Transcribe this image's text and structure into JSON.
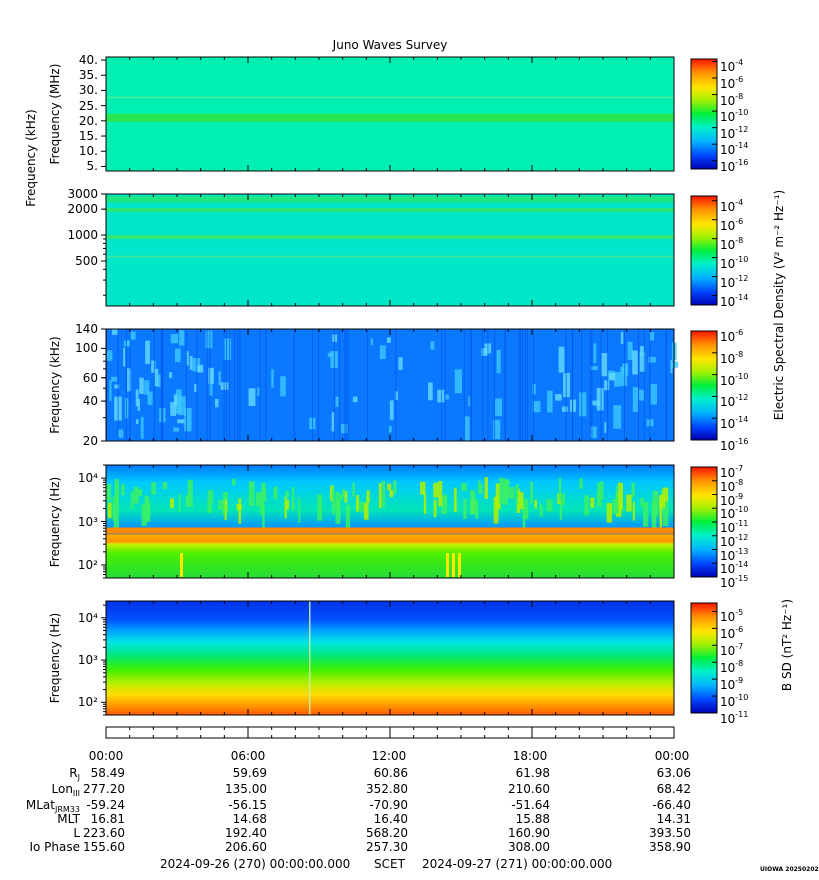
{
  "chart_data": {
    "title": "Juno Waves Survey",
    "type": "heatmap",
    "time_axis": {
      "tick_labels": [
        "00:00",
        "06:00",
        "12:00",
        "18:00",
        "00:00"
      ],
      "minor_ticks_per_major": 6
    },
    "panels": [
      {
        "id": "hfr-high",
        "ylabel": "Frequency (MHz)",
        "scale": "linear",
        "ylim": [
          3.5,
          41
        ],
        "ticks": [
          5,
          10,
          15,
          20,
          25,
          30,
          35,
          40
        ],
        "tick_labels": [
          "5.",
          "10.",
          "15.",
          "20.",
          "25.",
          "30.",
          "35.",
          "40."
        ],
        "colorbar_exponents": [
          -4,
          -6,
          -8,
          -10,
          -12,
          -14,
          -16
        ],
        "colorbar_range": [
          -17,
          -3.7
        ],
        "content": "uniform cyan-green background (~1e-12) with bright band near 21 MHz"
      },
      {
        "id": "hfr-low",
        "ylabel": "Frequency (kHz)",
        "scale": "log",
        "ylim": [
          150,
          3000
        ],
        "ticks": [
          500,
          1000,
          2000,
          3000
        ],
        "tick_labels": [
          "500",
          "1000",
          "2000",
          "3000"
        ],
        "colorbar_exponents": [
          -4,
          -6,
          -8,
          -10,
          -12,
          -14
        ],
        "colorbar_range": [
          -15,
          -3.5
        ],
        "content": "uniform cyan background with faint bands near 2600, 1900, 950 and 550 kHz"
      },
      {
        "id": "lfr-high",
        "ylabel": "Frequency (kHz)",
        "scale": "log",
        "ylim": [
          20,
          140
        ],
        "ticks": [
          20,
          40,
          60,
          100,
          140
        ],
        "tick_labels": [
          "20",
          "40",
          "60",
          "100",
          "140"
        ],
        "colorbar_exponents": [
          -6,
          -8,
          -10,
          -12,
          -14,
          -16
        ],
        "colorbar_range": [
          -16,
          -6
        ],
        "content": "blue background (~1e-14) with patchy light-blue emissions, strongest 00:00-03:00"
      },
      {
        "id": "lfr-low",
        "ylabel": "Frequency (Hz)",
        "scale": "log",
        "ylim": [
          50,
          20000
        ],
        "ticks": [
          100,
          1000,
          10000
        ],
        "tick_labels": [
          "10²",
          "10³",
          "10⁴"
        ],
        "colorbar_exponents": [
          -7,
          -8,
          -9,
          -10,
          -11,
          -12,
          -13,
          -14,
          -15
        ],
        "colorbar_range": [
          -15,
          -7
        ],
        "content": "green band below ~700 Hz with orange line near 600 Hz; blue-green emission 2-20 kHz"
      },
      {
        "id": "magnetic",
        "ylabel": "Frequency (Hz)",
        "scale": "log",
        "ylim": [
          50,
          25000
        ],
        "ticks": [
          100,
          1000,
          10000
        ],
        "tick_labels": [
          "10²",
          "10³",
          "10⁴"
        ],
        "colorbar_exponents": [
          -5,
          -6,
          -7,
          -8,
          -9,
          -10,
          -11
        ],
        "colorbar_range": [
          -11,
          -4.5
        ],
        "content": "smooth spectrum: red/orange at 50 Hz, yellow ~200 Hz, green ~1 kHz, blue above 5 kHz"
      }
    ],
    "colorbar_titles": {
      "electric": "Electric Spectral Density (V² m⁻² Hz⁻¹)",
      "magnetic": "B SD (nT² Hz⁻¹)"
    },
    "colormap": [
      "#0000c8",
      "#0050ff",
      "#00b4ff",
      "#00f0c8",
      "#00f032",
      "#b4f000",
      "#ffe600",
      "#ff9600",
      "#ff1e00"
    ]
  },
  "ephemeris": {
    "labels": [
      "R",
      "Lon",
      "MLat",
      "MLT",
      "L",
      "Io Phase"
    ],
    "label_subscripts": [
      "J",
      "III",
      "JRM33",
      "",
      "",
      ""
    ],
    "columns": [
      [
        "58.49",
        "277.20",
        "-59.24",
        "16.81",
        "223.60",
        "155.60"
      ],
      [
        "59.69",
        "135.00",
        "-56.15",
        "14.68",
        "192.40",
        "206.60"
      ],
      [
        "60.86",
        "352.80",
        "-70.90",
        "16.40",
        "568.20",
        "257.30"
      ],
      [
        "61.98",
        "210.60",
        "-51.64",
        "15.88",
        "160.90",
        "308.00"
      ],
      [
        "63.06",
        "68.42",
        "-66.40",
        "14.31",
        "393.50",
        "358.90"
      ]
    ]
  },
  "footer": {
    "start": "2024-09-26 (270) 00:00:00.000",
    "scet": "SCET",
    "end": "2024-09-27 (271) 00:00:00.000",
    "stamp": "UIOWA 20250202"
  }
}
